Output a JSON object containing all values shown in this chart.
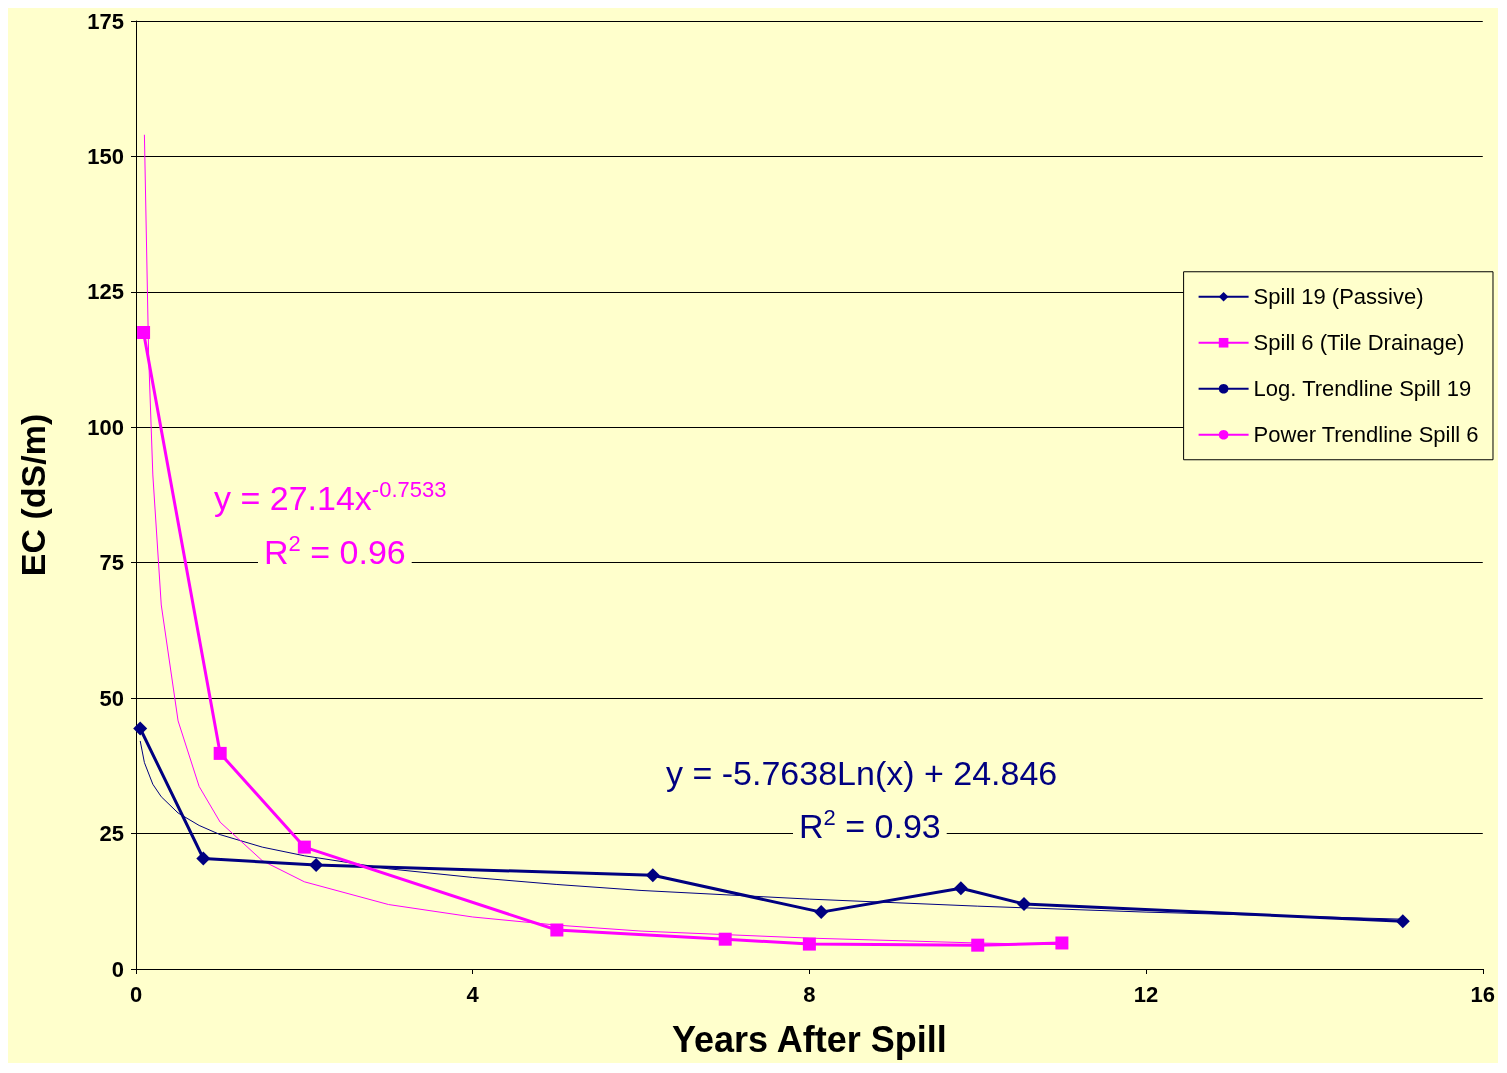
{
  "chart_data": {
    "type": "line",
    "xlabel": "Years After Spill",
    "ylabel": "EC (dS/m)",
    "xlim": [
      0,
      16
    ],
    "xticks": [
      0,
      4,
      8,
      12,
      16
    ],
    "ylim": [
      0,
      175
    ],
    "yticks": [
      0,
      25,
      50,
      75,
      100,
      125,
      150,
      175
    ],
    "grid": "y",
    "legend": "right",
    "annotations": [
      "y = 27.14x$^{-0.7533}$",
      "R$^{2}$ = 0.96",
      "y = -5.7638Ln(x) + 24.846",
      "R$^{2}$ = 0.93"
    ],
    "series": [
      {
        "name": "Spill 19 (Passive)",
        "color": "#000080",
        "marker": "diamond",
        "x": [
          0.05,
          0.8,
          2.14,
          6.14,
          8.14,
          9.8,
          10.55,
          15.05
        ],
        "values": [
          44.4,
          20.4,
          19.2,
          17.3,
          10.5,
          14.9,
          12.0,
          8.8
        ]
      },
      {
        "name": "Spill 6 (Tile Drainage)",
        "color": "#ff00ff",
        "marker": "square",
        "x": [
          0.09,
          1,
          2,
          5,
          7,
          8,
          10,
          11
        ],
        "values": [
          117.5,
          39.8,
          22.5,
          7.2,
          5.5,
          4.6,
          4.4,
          4.8
        ]
      },
      {
        "name": "Log. Trendline Spill 19",
        "color": "#000080",
        "marker": "none",
        "x": [
          0.05,
          0.1,
          0.2,
          0.3,
          0.5,
          0.75,
          1,
          1.5,
          2,
          3,
          4,
          5,
          6,
          8,
          10,
          12,
          15.05
        ],
        "values": [
          42.1,
          38.1,
          34.1,
          31.8,
          28.8,
          26.5,
          24.8,
          22.5,
          20.9,
          18.5,
          16.9,
          15.6,
          14.5,
          12.9,
          11.6,
          10.5,
          9.2
        ]
      },
      {
        "name": "Power Trendline Spill 6",
        "color": "#ff00ff",
        "marker": "none",
        "x": [
          0.1,
          0.15,
          0.2,
          0.3,
          0.5,
          0.75,
          1,
          1.5,
          2,
          3,
          4,
          5,
          6,
          8,
          10,
          11
        ],
        "values": [
          154.0,
          113.3,
          91.2,
          67.2,
          45.8,
          33.7,
          27.1,
          20.0,
          16.1,
          11.9,
          9.6,
          8.1,
          7.0,
          5.7,
          4.8,
          4.5
        ]
      }
    ]
  }
}
